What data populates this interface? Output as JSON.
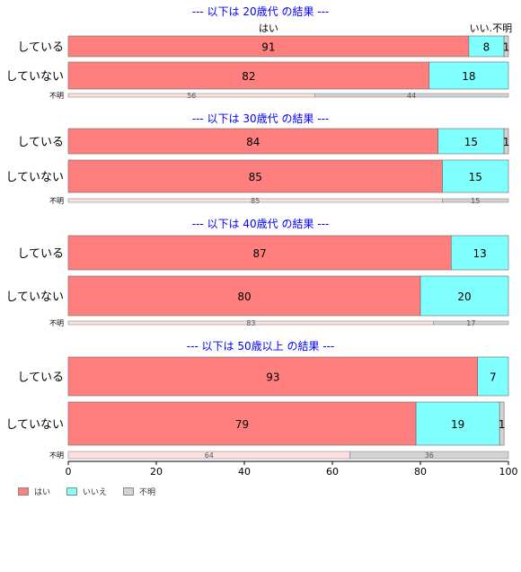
{
  "chart_data": {
    "type": "bar",
    "orientation": "horizontal",
    "stacked": true,
    "colors": {
      "yes": "#ff7f7f",
      "no": "#80ffff",
      "unknown": "#d3d3d3",
      "title": "#0000ff",
      "unknown_yes": "#ffe0e0"
    },
    "category_labels": [
      "はい",
      "いいえ",
      "不明"
    ],
    "top_labels": {
      "yes": "はい",
      "no_unknown": "いい.不明"
    },
    "panels": [
      {
        "title": "--- 以下は 20歳代 の結果 ---",
        "rows": [
          {
            "label": "している",
            "values": [
              91,
              8,
              1
            ]
          },
          {
            "label": "していない",
            "values": [
              82,
              18,
              0
            ]
          }
        ],
        "unknown_row": {
          "label": "不明",
          "values": [
            56,
            0,
            44
          ]
        }
      },
      {
        "title": "--- 以下は 30歳代 の結果 ---",
        "rows": [
          {
            "label": "している",
            "values": [
              84,
              15,
              1
            ]
          },
          {
            "label": "していない",
            "values": [
              85,
              15,
              0
            ]
          }
        ],
        "unknown_row": {
          "label": "不明",
          "values": [
            85,
            0,
            15
          ]
        }
      },
      {
        "title": "--- 以下は 40歳代 の結果 ---",
        "rows": [
          {
            "label": "している",
            "values": [
              87,
              13,
              0
            ]
          },
          {
            "label": "していない",
            "values": [
              80,
              20,
              0
            ]
          }
        ],
        "unknown_row": {
          "label": "不明",
          "values": [
            83,
            0,
            17
          ]
        }
      },
      {
        "title": "--- 以下は 50歳以上 の結果 ---",
        "rows": [
          {
            "label": "している",
            "values": [
              93,
              7,
              0
            ]
          },
          {
            "label": "していない",
            "values": [
              79,
              19,
              1
            ]
          }
        ],
        "unknown_row": {
          "label": "不明",
          "values": [
            64,
            0,
            36
          ]
        }
      }
    ],
    "xlim": [
      0,
      100
    ],
    "xticks": [
      0,
      20,
      40,
      60,
      80,
      100
    ],
    "legend": {
      "position": "bottom-left",
      "items": [
        "はい",
        "いいえ",
        "不明"
      ]
    }
  }
}
